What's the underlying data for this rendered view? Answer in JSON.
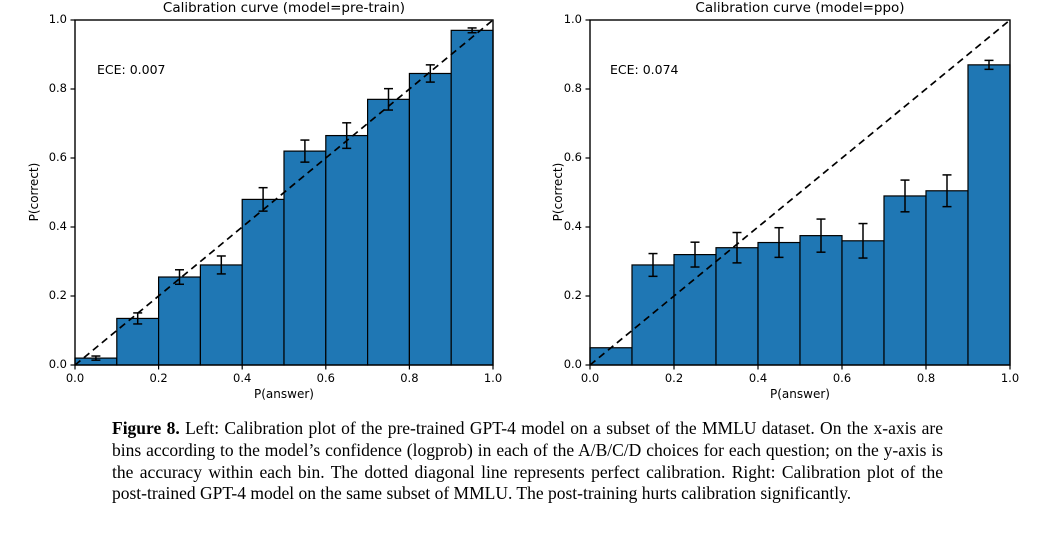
{
  "page": {
    "background_color": "#ffffff"
  },
  "figure_caption": {
    "label": "Figure 8.",
    "text": "Left: Calibration plot of the pre-trained GPT-4 model on a subset of the MMLU dataset. On the x-axis are bins according to the model’s confidence (logprob) in each of the A/B/C/D choices for each question; on the y-axis is the accuracy within each bin. The dotted diagonal line represents perfect calibration. Right: Calibration plot of the post-trained GPT-4 model on the same subset of MMLU. The post-training hurts calibration significantly."
  },
  "chart_data": [
    {
      "type": "bar",
      "title": "Calibration curve (model=pre-train)",
      "annotation": "ECE: 0.007",
      "xlabel": "P(answer)",
      "ylabel": "P(correct)",
      "xlim": [
        0.0,
        1.0
      ],
      "ylim": [
        0.0,
        1.0
      ],
      "grid": false,
      "xtick_labels": [
        "0.0",
        "0.2",
        "0.4",
        "0.6",
        "0.8",
        "1.0"
      ],
      "ytick_labels": [
        "0.0",
        "0.2",
        "0.4",
        "0.6",
        "0.8",
        "1.0"
      ],
      "bin_edges": [
        0.0,
        0.1,
        0.2,
        0.3,
        0.4,
        0.5,
        0.6,
        0.7,
        0.8,
        0.9,
        1.0
      ],
      "values": [
        0.02,
        0.135,
        0.255,
        0.29,
        0.48,
        0.62,
        0.665,
        0.77,
        0.845,
        0.97
      ],
      "errors": [
        0.006,
        0.016,
        0.021,
        0.026,
        0.034,
        0.032,
        0.037,
        0.031,
        0.025,
        0.007
      ],
      "diagonal_line": "perfect calibration y=x, black dashed",
      "bar_color": "#1f77b4",
      "bar_edge_color": "#000000"
    },
    {
      "type": "bar",
      "title": "Calibration curve (model=ppo)",
      "annotation": "ECE: 0.074",
      "xlabel": "P(answer)",
      "ylabel": "P(correct)",
      "xlim": [
        0.0,
        1.0
      ],
      "ylim": [
        0.0,
        1.0
      ],
      "grid": false,
      "xtick_labels": [
        "0.0",
        "0.2",
        "0.4",
        "0.6",
        "0.8",
        "1.0"
      ],
      "ytick_labels": [
        "0.0",
        "0.2",
        "0.4",
        "0.6",
        "0.8",
        "1.0"
      ],
      "bin_edges": [
        0.0,
        0.1,
        0.2,
        0.3,
        0.4,
        0.5,
        0.6,
        0.7,
        0.8,
        0.9,
        1.0
      ],
      "values": [
        0.05,
        0.29,
        0.32,
        0.34,
        0.355,
        0.375,
        0.36,
        0.49,
        0.505,
        0.87
      ],
      "errors": [
        0,
        0.033,
        0.036,
        0.044,
        0.043,
        0.048,
        0.05,
        0.046,
        0.046,
        0.013
      ],
      "diagonal_line": "perfect calibration y=x, black dashed",
      "bar_color": "#1f77b4",
      "bar_edge_color": "#000000"
    }
  ]
}
